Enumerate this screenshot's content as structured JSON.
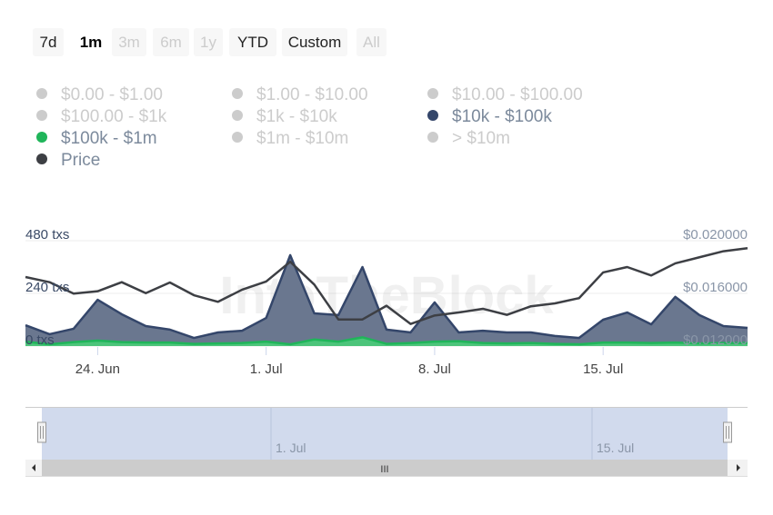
{
  "range_buttons": [
    {
      "label": "7d",
      "state": "normal"
    },
    {
      "label": "1m",
      "state": "active"
    },
    {
      "label": "3m",
      "state": "disabled"
    },
    {
      "label": "6m",
      "state": "disabled"
    },
    {
      "label": "1y",
      "state": "disabled"
    },
    {
      "label": "YTD",
      "state": "normal"
    },
    {
      "label": "Custom",
      "state": "normal"
    },
    {
      "label": "All",
      "state": "disabled"
    }
  ],
  "legend": [
    {
      "label": "$0.00 - $1.00",
      "enabled": false,
      "color": "#cccccc"
    },
    {
      "label": "$1.00 - $10.00",
      "enabled": false,
      "color": "#cccccc"
    },
    {
      "label": "$10.00 - $100.00",
      "enabled": false,
      "color": "#cccccc"
    },
    {
      "label": "$100.00 - $1k",
      "enabled": false,
      "color": "#cccccc"
    },
    {
      "label": "$1k - $10k",
      "enabled": false,
      "color": "#cccccc"
    },
    {
      "label": "$10k - $100k",
      "enabled": true,
      "color": "#34466a"
    },
    {
      "label": "$100k - $1m",
      "enabled": true,
      "color": "#20b55a"
    },
    {
      "label": "$1m - $10m",
      "enabled": false,
      "color": "#cccccc"
    },
    {
      "label": "> $10m",
      "enabled": false,
      "color": "#cccccc"
    },
    {
      "label": "Price",
      "enabled": true,
      "color": "#3d3f44"
    }
  ],
  "watermark": "IntoTheBlock",
  "navigator": {
    "tick_labels": [
      "1. Jul",
      "15. Jul"
    ],
    "scroll_grip": "III"
  },
  "chart_data": {
    "type": "area",
    "x": [
      "2024-06-21",
      "2024-06-22",
      "2024-06-23",
      "2024-06-24",
      "2024-06-25",
      "2024-06-26",
      "2024-06-27",
      "2024-06-28",
      "2024-06-29",
      "2024-06-30",
      "2024-07-01",
      "2024-07-02",
      "2024-07-03",
      "2024-07-04",
      "2024-07-05",
      "2024-07-06",
      "2024-07-07",
      "2024-07-08",
      "2024-07-09",
      "2024-07-10",
      "2024-07-11",
      "2024-07-12",
      "2024-07-13",
      "2024-07-14",
      "2024-07-15",
      "2024-07-16",
      "2024-07-17",
      "2024-07-18",
      "2024-07-19",
      "2024-07-20",
      "2024-07-21"
    ],
    "x_tick_labels": [
      "24. Jun",
      "1. Jul",
      "8. Jul",
      "15. Jul"
    ],
    "y_left": {
      "ticks": [
        "0 txs",
        "240 txs",
        "480 txs"
      ],
      "range": [
        0,
        480
      ]
    },
    "y_right": {
      "ticks": [
        "$0.012000",
        "$0.016000",
        "$0.020000"
      ],
      "range": [
        0.012,
        0.02
      ]
    },
    "grid": true,
    "series": [
      {
        "name": "$10k - $100k",
        "type": "area",
        "axis": "left",
        "color": "#34466a",
        "fill": "#6a778f",
        "values": [
          95,
          54,
          79,
          211,
          145,
          91,
          75,
          37,
          62,
          70,
          128,
          414,
          149,
          141,
          360,
          75,
          62,
          199,
          62,
          70,
          62,
          62,
          46,
          37,
          120,
          153,
          99,
          224,
          141,
          91,
          83
        ]
      },
      {
        "name": "$100k - $1m",
        "type": "area",
        "axis": "left",
        "color": "#20b55a",
        "fill": "#4cc47a",
        "values": [
          20,
          8,
          18,
          25,
          18,
          16,
          16,
          10,
          12,
          14,
          20,
          8,
          30,
          20,
          40,
          10,
          14,
          20,
          22,
          14,
          12,
          14,
          10,
          8,
          16,
          16,
          14,
          16,
          12,
          14,
          14
        ]
      },
      {
        "name": "Price",
        "type": "line",
        "axis": "right",
        "color": "#3d3f44",
        "values": [
          0.01724,
          0.01685,
          0.01598,
          0.01616,
          0.01685,
          0.01602,
          0.01683,
          0.01586,
          0.01536,
          0.01628,
          0.0169,
          0.0184,
          0.01667,
          0.01402,
          0.01402,
          0.01506,
          0.01368,
          0.01432,
          0.01455,
          0.01483,
          0.01437,
          0.01502,
          0.01524,
          0.01564,
          0.01759,
          0.018,
          0.01736,
          0.01828,
          0.01874,
          0.0192,
          0.01943
        ]
      }
    ]
  }
}
